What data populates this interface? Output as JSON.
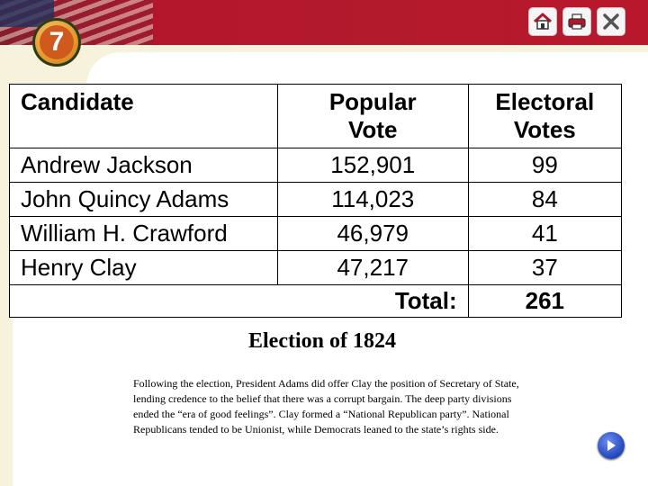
{
  "chapter_badge": "7",
  "toolbar": {
    "home_icon": "home-icon",
    "print_icon": "printer-icon",
    "close_icon": "close-icon"
  },
  "table": {
    "headers": {
      "candidate": "Candidate",
      "popular_vote_line1": "Popular",
      "popular_vote_line2": "Vote",
      "electoral_votes_line1": "Electoral",
      "electoral_votes_line2": "Votes"
    },
    "rows": [
      {
        "candidate": "Andrew Jackson",
        "popular_vote": "152,901",
        "electoral_votes": "99"
      },
      {
        "candidate": "John Quincy Adams",
        "popular_vote": "114,023",
        "electoral_votes": "84"
      },
      {
        "candidate": "William H. Crawford",
        "popular_vote": "46,979",
        "electoral_votes": "41"
      },
      {
        "candidate": "Henry Clay",
        "popular_vote": "47,217",
        "electoral_votes": "37"
      }
    ],
    "total_label": "Total:",
    "total_value": "261"
  },
  "caption": "Election of 1824",
  "body_text": "Following the election, President Adams did offer Clay the position of Secretary of State, lending credence to the belief that there was a corrupt bargain.  The deep party divisions ended the “era of good feelings”.  Clay formed a “National Republican party”.  National Republicans tended to be Unionist, while Democrats leaned to the state’s rights side.",
  "nav": {
    "next_icon": "play-next-icon"
  },
  "colors": {
    "banner": "#b4162c",
    "frame": "#f7f2dc",
    "badge": "#e59a2a",
    "next_button": "#2b4fc2"
  }
}
